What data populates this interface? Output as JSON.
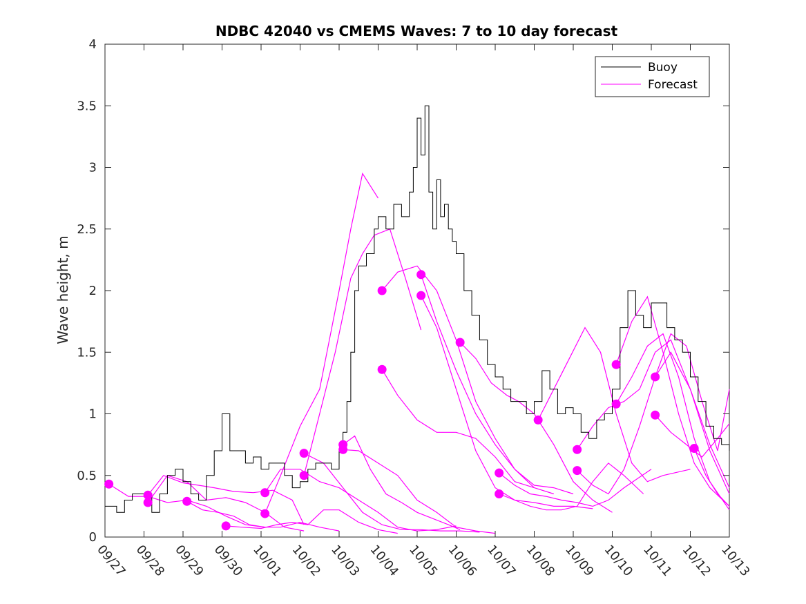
{
  "chart_data": {
    "type": "line",
    "title": "NDBC 42040 vs CMEMS Waves: 7 to 10 day forecast",
    "xlabel": "",
    "ylabel": "Wave height, m",
    "xlim": [
      0,
      16
    ],
    "ylim": [
      0,
      4
    ],
    "x_ticks": [
      0,
      1,
      2,
      3,
      4,
      5,
      6,
      7,
      8,
      9,
      10,
      11,
      12,
      13,
      14,
      15,
      16
    ],
    "x_tick_labels": [
      "09/27",
      "09/28",
      "09/29",
      "09/30",
      "10/01",
      "10/02",
      "10/03",
      "10/04",
      "10/05",
      "10/06",
      "10/07",
      "10/08",
      "10/09",
      "10/10",
      "10/11",
      "10/12",
      "10/13"
    ],
    "y_ticks": [
      0,
      0.5,
      1,
      1.5,
      2,
      2.5,
      3,
      3.5,
      4
    ],
    "y_tick_labels": [
      "0",
      "0.5",
      "1",
      "1.5",
      "2",
      "2.5",
      "3",
      "3.5",
      "4"
    ],
    "legend": {
      "position": "top-right",
      "entries": [
        {
          "name": "Buoy",
          "color": "#000000"
        },
        {
          "name": "Forecast",
          "color": "#ff00ff"
        }
      ]
    },
    "colors": {
      "buoy": "#000000",
      "forecast": "#ff00ff",
      "axes": "#262626"
    },
    "series": [
      {
        "name": "Buoy",
        "x": [
          0,
          0.3,
          0.5,
          0.7,
          1.0,
          1.2,
          1.4,
          1.6,
          1.8,
          2.0,
          2.2,
          2.4,
          2.6,
          2.8,
          3.0,
          3.2,
          3.4,
          3.5,
          3.6,
          3.8,
          4.0,
          4.2,
          4.4,
          4.6,
          4.8,
          5.0,
          5.2,
          5.4,
          5.6,
          5.8,
          6.0,
          6.1,
          6.2,
          6.3,
          6.4,
          6.5,
          6.7,
          6.9,
          7.0,
          7.2,
          7.4,
          7.6,
          7.8,
          7.9,
          8.0,
          8.1,
          8.2,
          8.3,
          8.4,
          8.5,
          8.6,
          8.7,
          8.8,
          8.9,
          9.0,
          9.2,
          9.4,
          9.6,
          9.8,
          10.0,
          10.2,
          10.4,
          10.6,
          10.8,
          11.0,
          11.2,
          11.4,
          11.6,
          11.8,
          12.0,
          12.2,
          12.4,
          12.6,
          12.8,
          13.0,
          13.2,
          13.4,
          13.6,
          13.8,
          14.0,
          14.2,
          14.4,
          14.6,
          14.8,
          15.0,
          15.2,
          15.4,
          15.6,
          15.8,
          16.0
        ],
        "y": [
          0.25,
          0.2,
          0.3,
          0.35,
          0.35,
          0.2,
          0.35,
          0.5,
          0.55,
          0.45,
          0.35,
          0.3,
          0.5,
          0.7,
          1.0,
          0.7,
          0.7,
          0.7,
          0.6,
          0.65,
          0.55,
          0.6,
          0.6,
          0.5,
          0.4,
          0.45,
          0.55,
          0.6,
          0.6,
          0.55,
          0.7,
          0.85,
          1.1,
          1.5,
          2.0,
          2.2,
          2.3,
          2.5,
          2.6,
          2.5,
          2.7,
          2.6,
          2.8,
          3.0,
          3.4,
          3.1,
          3.5,
          2.8,
          2.5,
          2.9,
          2.6,
          2.7,
          2.5,
          2.4,
          2.3,
          2.0,
          1.8,
          1.6,
          1.4,
          1.3,
          1.2,
          1.1,
          1.1,
          1.0,
          1.1,
          1.35,
          1.2,
          1.0,
          1.05,
          1.0,
          0.85,
          0.8,
          0.95,
          1.0,
          1.2,
          1.7,
          2.0,
          1.8,
          1.7,
          1.9,
          1.9,
          1.7,
          1.6,
          1.5,
          1.3,
          1.1,
          0.9,
          0.8,
          0.75,
          0.7
        ]
      }
    ],
    "forecast_runs": [
      {
        "start_day": 0.1,
        "x": [
          0.1,
          0.6,
          1.1,
          1.6,
          2.1,
          2.6,
          3.1,
          3.6,
          4.1
        ],
        "y": [
          0.43,
          0.33,
          0.33,
          0.28,
          0.3,
          0.25,
          0.17,
          0.1,
          0.08
        ]
      },
      {
        "start_day": 1.1,
        "x": [
          1.1,
          1.6,
          2.1,
          2.6,
          3.1,
          3.6,
          4.1,
          4.6,
          5.1
        ],
        "y": [
          0.28,
          0.5,
          0.45,
          0.3,
          0.32,
          0.28,
          0.2,
          0.08,
          0.05
        ]
      },
      {
        "start_day": 1.1,
        "x": [
          1.1,
          1.5,
          2.0,
          2.4,
          2.8,
          3.3,
          3.8,
          4.3,
          4.8,
          5.1
        ],
        "y": [
          0.34,
          0.5,
          0.44,
          0.42,
          0.4,
          0.37,
          0.36,
          0.38,
          0.3,
          0.1
        ]
      },
      {
        "start_day": 2.1,
        "x": [
          2.1,
          2.5,
          2.9,
          3.3,
          3.7,
          4.1,
          4.5,
          5.0,
          5.5,
          6.0
        ],
        "y": [
          0.29,
          0.22,
          0.2,
          0.17,
          0.1,
          0.08,
          0.08,
          0.12,
          0.08,
          0.05
        ]
      },
      {
        "start_day": 3.1,
        "x": [
          3.1,
          3.5,
          4.0,
          4.4,
          4.8,
          5.2,
          5.6,
          6.0,
          6.5,
          7.0,
          7.5
        ],
        "y": [
          0.09,
          0.08,
          0.07,
          0.1,
          0.12,
          0.1,
          0.22,
          0.22,
          0.12,
          0.06,
          0.03
        ]
      },
      {
        "start_day": 4.1,
        "x": [
          4.1,
          4.5,
          5.0,
          5.5,
          6.0,
          6.5,
          7.0,
          7.5,
          8.0,
          8.5,
          9.0
        ],
        "y": [
          0.36,
          0.55,
          0.55,
          0.45,
          0.4,
          0.3,
          0.2,
          0.08,
          0.05,
          0.06,
          0.09
        ]
      },
      {
        "start_day": 4.1,
        "x": [
          4.1,
          4.5,
          5.0,
          5.5,
          6.0,
          6.3,
          6.6,
          7.0
        ],
        "y": [
          0.19,
          0.5,
          0.9,
          1.2,
          2.0,
          2.5,
          2.95,
          2.75
        ]
      },
      {
        "start_day": 5.1,
        "x": [
          5.1,
          5.6,
          6.1,
          6.6,
          7.1,
          7.6,
          8.1,
          8.6,
          9.1,
          9.6
        ],
        "y": [
          0.68,
          0.6,
          0.4,
          0.2,
          0.1,
          0.06,
          0.06,
          0.05,
          0.05,
          0.04
        ]
      },
      {
        "start_day": 5.1,
        "x": [
          5.1,
          5.5,
          5.9,
          6.3,
          6.6,
          6.9,
          7.3,
          7.7,
          8.1
        ],
        "y": [
          0.5,
          1.0,
          1.5,
          2.1,
          2.3,
          2.45,
          2.5,
          2.1,
          1.68
        ]
      },
      {
        "start_day": 6.1,
        "x": [
          6.1,
          6.4,
          6.8,
          7.2,
          7.6,
          8.0,
          8.4,
          8.8,
          9.1
        ],
        "y": [
          0.75,
          0.82,
          0.55,
          0.35,
          0.28,
          0.2,
          0.15,
          0.1,
          0.06
        ]
      },
      {
        "start_day": 6.1,
        "x": [
          6.1,
          6.5,
          7.0,
          7.5,
          8.0,
          8.5,
          9.0,
          9.5,
          10.0
        ],
        "y": [
          0.71,
          0.7,
          0.6,
          0.5,
          0.3,
          0.2,
          0.08,
          0.05,
          0.03
        ]
      },
      {
        "start_day": 7.1,
        "x": [
          7.1,
          7.5,
          8.0,
          8.5,
          9.0,
          9.5,
          10.0,
          10.5,
          11.0
        ],
        "y": [
          2.0,
          2.15,
          2.2,
          2.0,
          1.6,
          1.1,
          0.8,
          0.55,
          0.4
        ]
      },
      {
        "start_day": 7.1,
        "x": [
          7.1,
          7.5,
          8.0,
          8.5,
          9.0,
          9.5,
          10.0,
          10.5,
          11.0,
          11.5
        ],
        "y": [
          1.36,
          1.15,
          0.95,
          0.85,
          0.85,
          0.8,
          0.65,
          0.45,
          0.4,
          0.35
        ]
      },
      {
        "start_day": 8.1,
        "x": [
          8.1,
          8.5,
          9.0,
          9.5,
          10.0,
          10.5,
          11.0,
          11.5,
          12.0
        ],
        "y": [
          2.13,
          1.75,
          1.35,
          1.0,
          0.75,
          0.55,
          0.42,
          0.4,
          0.35
        ]
      },
      {
        "start_day": 8.1,
        "x": [
          8.1,
          8.5,
          9.0,
          9.5,
          10.0,
          10.5,
          11.0,
          11.5,
          12.0,
          12.5
        ],
        "y": [
          1.96,
          1.7,
          1.2,
          0.7,
          0.4,
          0.3,
          0.28,
          0.25,
          0.25,
          0.23
        ]
      },
      {
        "start_day": 9.1,
        "x": [
          9.1,
          9.5,
          9.9,
          10.3,
          10.6,
          11.0,
          11.5,
          12.0,
          12.5,
          13.0
        ],
        "y": [
          1.58,
          1.45,
          1.25,
          1.15,
          1.1,
          1.0,
          0.75,
          0.45,
          0.3,
          0.2
        ]
      },
      {
        "start_day": 10.1,
        "x": [
          10.1,
          10.5,
          10.9,
          11.3,
          11.7,
          12.1,
          12.5,
          12.9,
          13.3,
          14.0
        ],
        "y": [
          0.52,
          0.42,
          0.35,
          0.33,
          0.3,
          0.28,
          0.25,
          0.3,
          0.4,
          0.55
        ]
      },
      {
        "start_day": 10.1,
        "x": [
          10.1,
          10.5,
          10.9,
          11.3,
          11.7,
          12.1,
          12.5,
          12.9,
          13.3,
          13.8
        ],
        "y": [
          0.35,
          0.3,
          0.25,
          0.22,
          0.22,
          0.25,
          0.45,
          0.6,
          0.5,
          0.35
        ]
      },
      {
        "start_day": 11.1,
        "x": [
          11.1,
          11.5,
          11.9,
          12.3,
          12.7,
          13.1,
          13.5,
          13.9,
          14.3,
          15.0
        ],
        "y": [
          0.95,
          1.2,
          1.45,
          1.7,
          1.5,
          1.0,
          0.6,
          0.45,
          0.5,
          0.55
        ]
      },
      {
        "start_day": 12.1,
        "x": [
          12.1,
          12.5,
          12.9,
          13.3,
          13.7,
          14.1,
          14.5,
          15.0,
          15.5,
          16.0
        ],
        "y": [
          0.71,
          0.9,
          1.05,
          1.1,
          1.2,
          1.5,
          1.6,
          1.2,
          0.7,
          0.35
        ]
      },
      {
        "start_day": 12.1,
        "x": [
          12.1,
          12.5,
          12.9,
          13.3,
          13.7,
          14.1,
          14.5,
          15.0,
          15.5,
          16.0
        ],
        "y": [
          0.54,
          0.42,
          0.35,
          0.55,
          0.9,
          1.3,
          1.5,
          1.2,
          0.75,
          0.4
        ]
      },
      {
        "start_day": 13.1,
        "x": [
          13.1,
          13.5,
          13.9,
          14.3,
          14.7,
          15.1,
          15.5,
          16.0
        ],
        "y": [
          1.4,
          1.75,
          1.95,
          1.5,
          1.0,
          0.6,
          0.4,
          0.25
        ]
      },
      {
        "start_day": 13.1,
        "x": [
          13.1,
          13.5,
          13.9,
          14.3,
          14.7,
          15.1,
          15.5,
          16.0
        ],
        "y": [
          1.08,
          1.3,
          1.55,
          1.65,
          1.3,
          0.8,
          0.45,
          0.22
        ]
      },
      {
        "start_day": 14.1,
        "x": [
          14.1,
          14.5,
          14.9,
          15.3,
          15.7,
          16.0
        ],
        "y": [
          1.3,
          1.65,
          1.55,
          1.1,
          0.7,
          1.2
        ]
      },
      {
        "start_day": 14.1,
        "x": [
          14.1,
          14.5,
          14.9,
          15.3,
          15.7,
          16.0
        ],
        "y": [
          0.99,
          0.85,
          0.75,
          0.65,
          0.8,
          0.92
        ]
      },
      {
        "start_day": 15.1,
        "x": [
          15.1,
          15.4,
          15.7,
          16.0
        ],
        "y": [
          0.72,
          0.5,
          0.35,
          0.25
        ]
      }
    ],
    "forecast_start_markers": {
      "x": [
        0.1,
        1.1,
        1.1,
        2.1,
        3.1,
        4.1,
        4.1,
        5.1,
        5.1,
        6.1,
        6.1,
        7.1,
        7.1,
        8.1,
        8.1,
        9.1,
        10.1,
        10.1,
        11.1,
        12.1,
        12.1,
        13.1,
        13.1,
        14.1,
        14.1,
        15.1
      ],
      "y": [
        0.43,
        0.28,
        0.34,
        0.29,
        0.09,
        0.36,
        0.19,
        0.68,
        0.5,
        0.75,
        0.71,
        2.0,
        1.36,
        2.13,
        1.96,
        1.58,
        0.52,
        0.35,
        0.95,
        0.71,
        0.54,
        1.4,
        1.08,
        1.3,
        0.99,
        0.72
      ]
    }
  }
}
